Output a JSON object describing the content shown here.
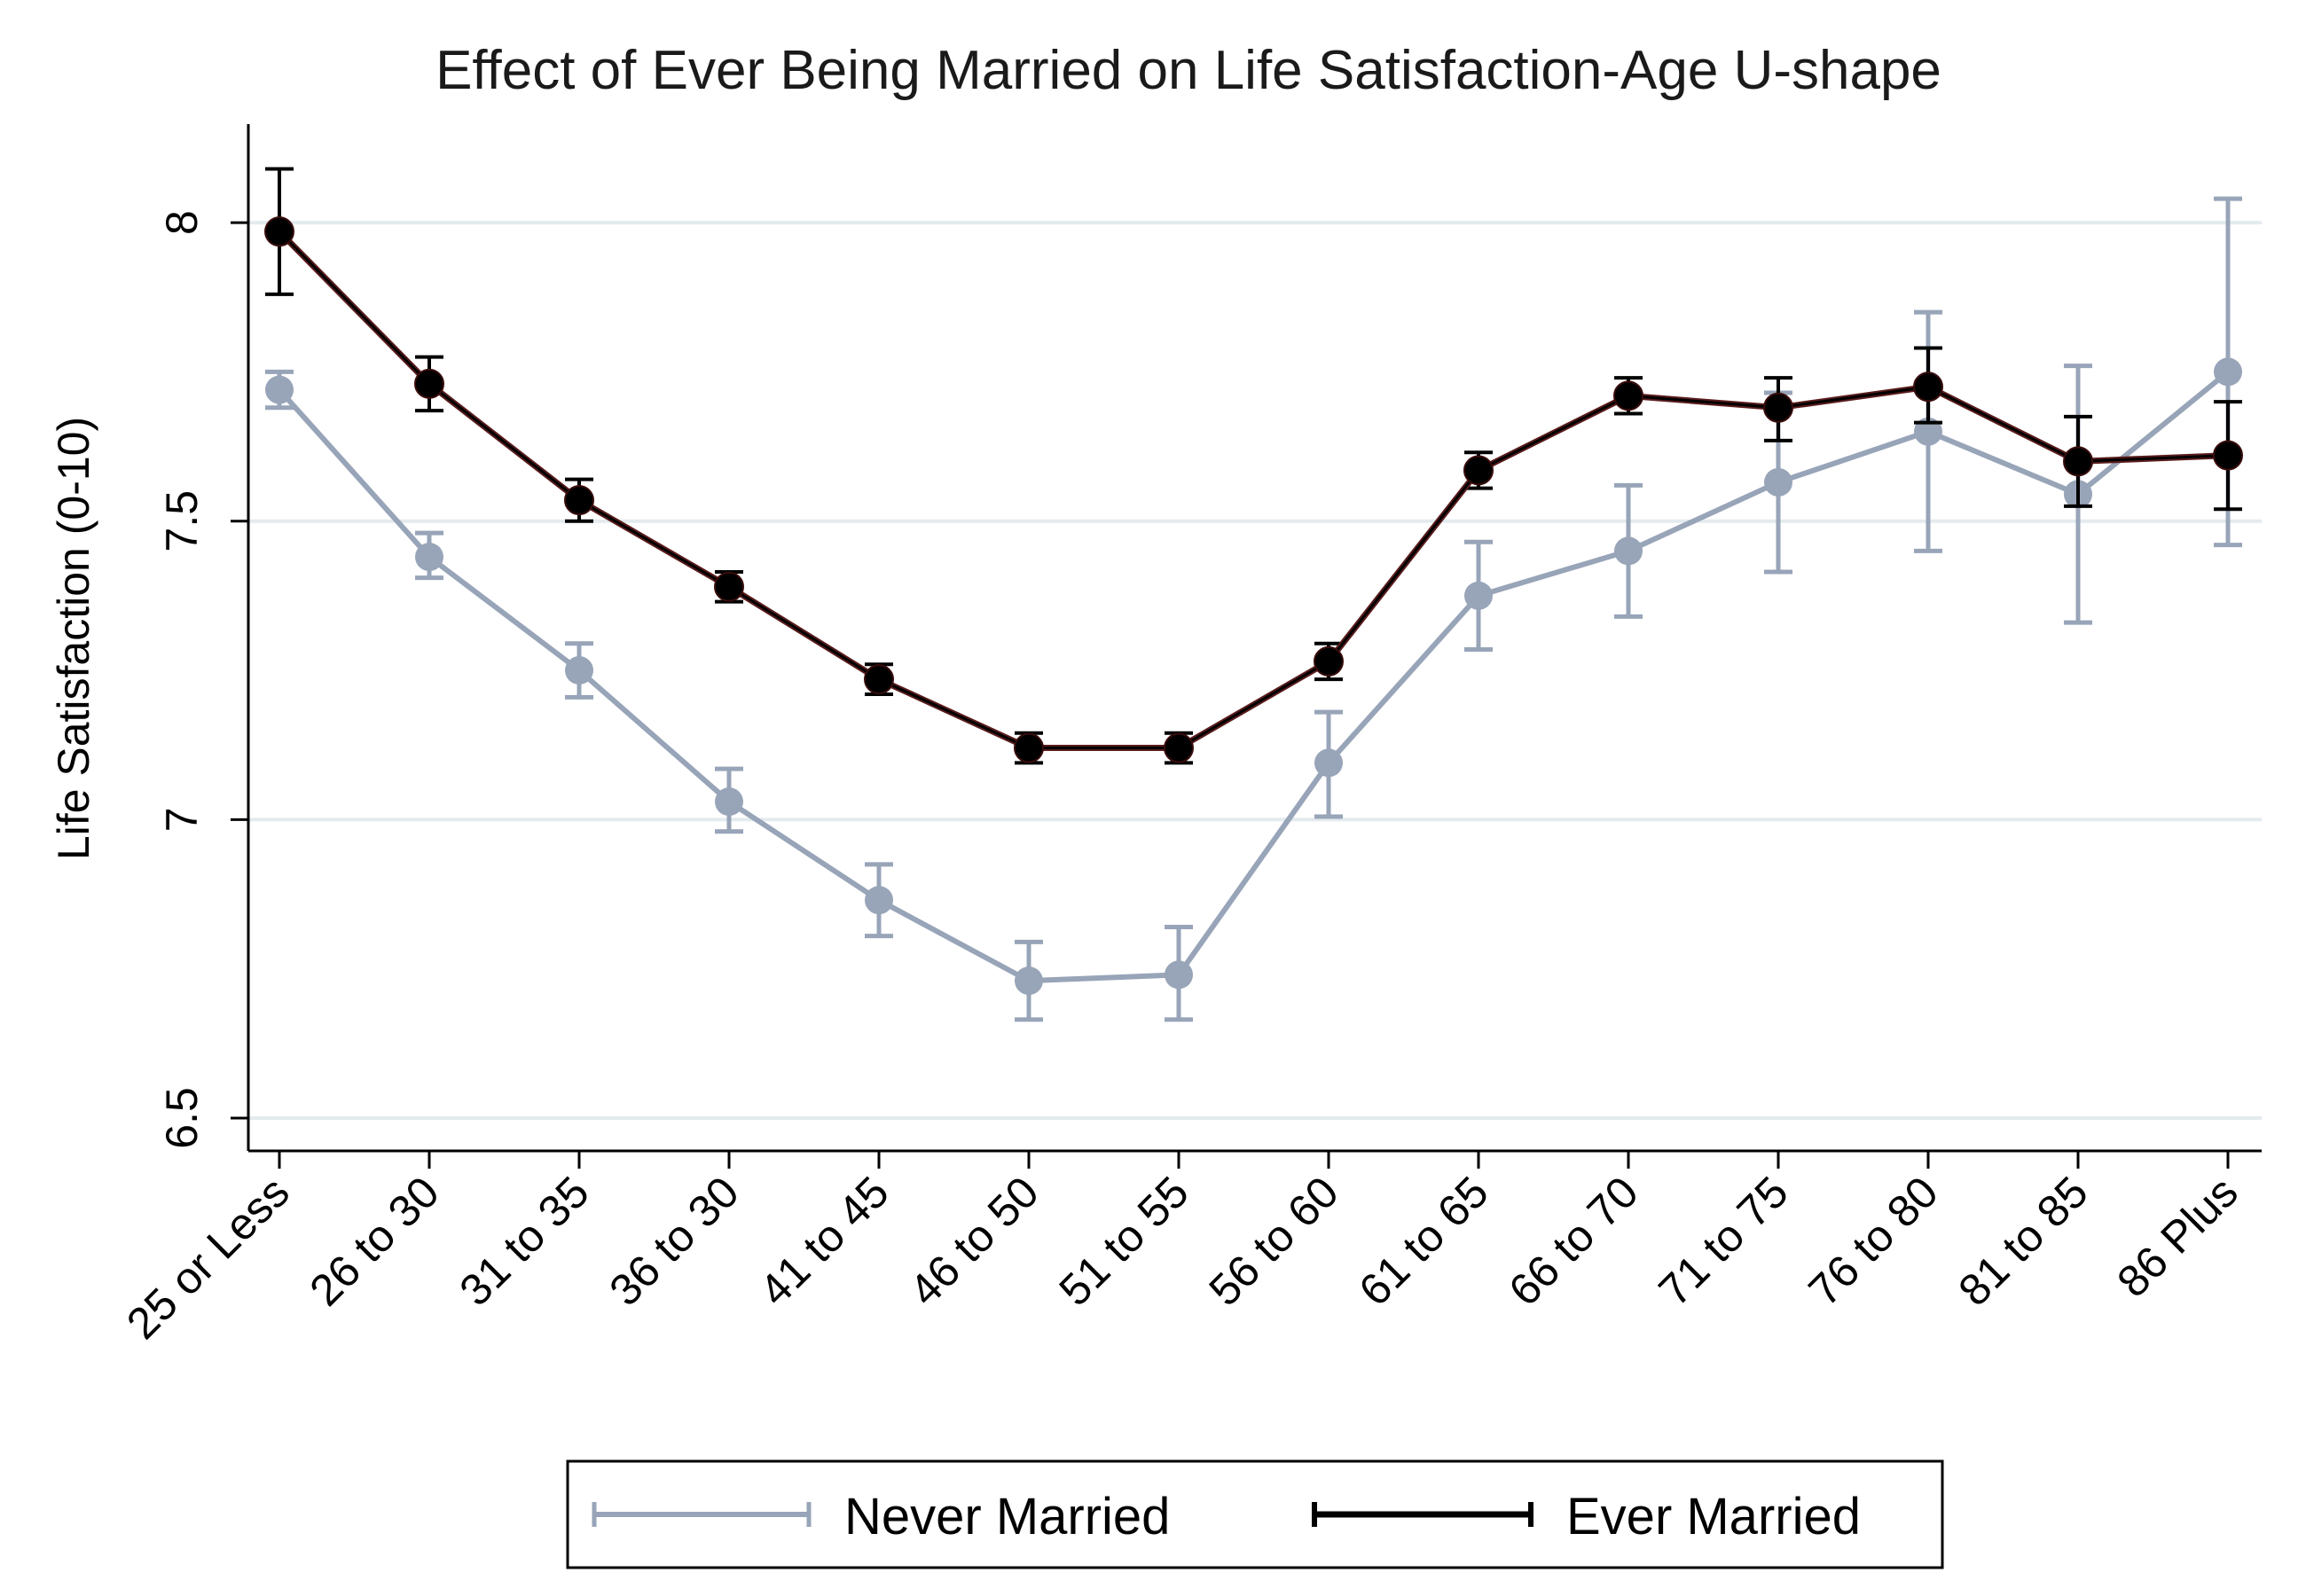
{
  "chart_data": {
    "type": "line",
    "title": "Effect of Ever Being Married on Life Satisfaction-Age U-shape",
    "ylabel": "Life Satisfaction (0-10)",
    "xlabel": "",
    "categories": [
      "25 or Less",
      "26 to 30",
      "31 to 35",
      "36 to 30",
      "41 to 45",
      "46 to 50",
      "51 to 55",
      "56 to 60",
      "61 to 65",
      "66 to 70",
      "71 to 75",
      "76 to 80",
      "81 to 85",
      "86 Plus"
    ],
    "y_ticks": [
      6.5,
      7,
      7.5,
      8
    ],
    "y_tick_labels": [
      "6.5",
      "7",
      "7.5",
      "8"
    ],
    "ylim": [
      6.445,
      8.165
    ],
    "grid": true,
    "legend_position": "bottom",
    "series": [
      {
        "name": "Never Married",
        "color": "#98a4b8",
        "values": [
          7.72,
          7.44,
          7.25,
          7.03,
          6.865,
          6.73,
          6.74,
          7.095,
          7.375,
          7.45,
          7.565,
          7.65,
          7.545,
          7.75
        ],
        "lower": [
          7.69,
          7.405,
          7.205,
          6.98,
          6.805,
          6.665,
          6.665,
          7.005,
          7.285,
          7.34,
          7.415,
          7.45,
          7.33,
          7.46
        ],
        "upper": [
          7.75,
          7.48,
          7.295,
          7.085,
          6.925,
          6.795,
          6.82,
          7.18,
          7.465,
          7.56,
          7.715,
          7.85,
          7.76,
          8.04
        ]
      },
      {
        "name": "Ever Married",
        "color": "#000000",
        "values": [
          7.985,
          7.73,
          7.535,
          7.39,
          7.235,
          7.12,
          7.12,
          7.265,
          7.585,
          7.71,
          7.69,
          7.725,
          7.6,
          7.61
        ],
        "lower": [
          7.88,
          7.685,
          7.5,
          7.365,
          7.21,
          7.095,
          7.095,
          7.235,
          7.555,
          7.68,
          7.635,
          7.665,
          7.525,
          7.52
        ],
        "upper": [
          8.09,
          7.775,
          7.57,
          7.415,
          7.26,
          7.145,
          7.145,
          7.295,
          7.615,
          7.74,
          7.74,
          7.79,
          7.675,
          7.7
        ]
      }
    ]
  }
}
